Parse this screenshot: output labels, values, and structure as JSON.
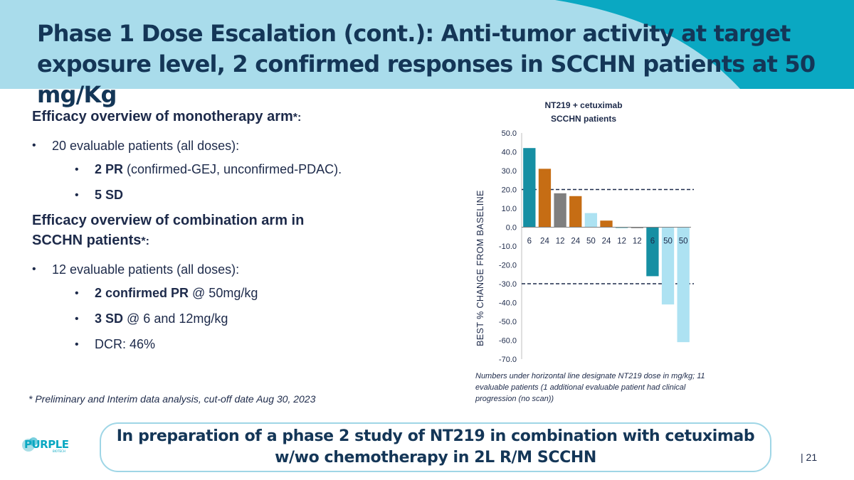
{
  "slide": {
    "title": "Phase 1 Dose Escalation (cont.): Anti-tumor activity at target exposure level, 2 confirmed responses in SCCHN patients at 50 mg/Kg",
    "page_number": "| 21",
    "footnote": "* Preliminary and Interim data analysis, cut-off date Aug 30, 2023",
    "banner": "In preparation of a phase 2 study of NT219 in combination with cetuximab w/wo chemotherapy in 2L R/M SCCHN",
    "logo_text": "PURPLE",
    "logo_subtext": "BIOTECH"
  },
  "mono": {
    "heading": "Efficacy overview of monotherapy arm",
    "star": "*:",
    "bullet": "20 evaluable patients (all doses):",
    "pr_bold": "2 PR",
    "pr_rest": " (confirmed-GEJ, unconfirmed-PDAC).",
    "sd_bold": "5 SD"
  },
  "combo": {
    "heading": "Efficacy overview of combination arm in SCCHN patients",
    "star": "*:",
    "bullet": "12 evaluable patients (all doses):",
    "pr_bold": "2 confirmed PR",
    "pr_rest": " @ 50mg/kg",
    "sd_bold": "3 SD",
    "sd_rest": " @ 6 and 12mg/kg",
    "dcr": "DCR: 46%"
  },
  "chart_note": "Numbers under horizontal line designate NT219 dose in mg/kg; 11 evaluable patients (1 additional evaluable patient had clinical progression (no scan))",
  "chart_data": {
    "type": "bar",
    "title": "NT219 + cetuximab",
    "subtitle": "SCCHN patients",
    "ylabel": "BEST % CHANGE FROM BASELINE",
    "xlabel": "",
    "categories": [
      "6",
      "24",
      "12",
      "24",
      "50",
      "24",
      "12",
      "12",
      "6",
      "50",
      "50"
    ],
    "values": [
      42.0,
      31.0,
      18.0,
      16.5,
      7.5,
      3.5,
      0,
      -0.5,
      -26.0,
      -41.0,
      -61.0
    ],
    "bar_colors": [
      "#168fa3",
      "#c66d14",
      "#7f7f7f",
      "#c66d14",
      "#ade2f2",
      "#c66d14",
      "#168fa3",
      "#7f7f7f",
      "#168fa3",
      "#ade2f2",
      "#ade2f2"
    ],
    "ylim": [
      -70,
      50
    ],
    "yticks": [
      "50.0",
      "40.0",
      "30.0",
      "20.0",
      "10.0",
      "0.0",
      "-10.0",
      "-20.0",
      "-30.0",
      "-40.0",
      "-50.0",
      "-60.0",
      "-70.0"
    ],
    "reference_lines": [
      20,
      -30
    ],
    "grid": false,
    "legend": "none"
  },
  "colors": {
    "header": "#a9dceb",
    "header_accent": "#0aa8c2",
    "title": "#143657",
    "banner_border": "#9fd6e6"
  }
}
